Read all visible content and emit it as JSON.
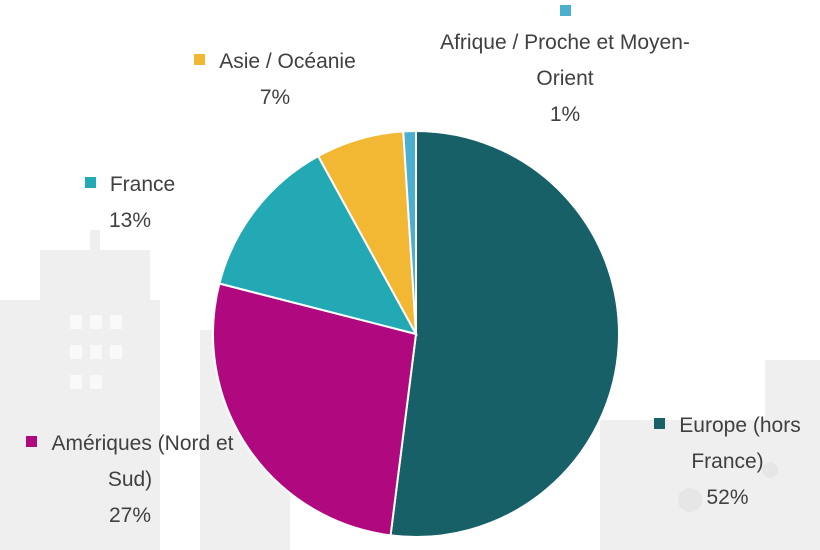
{
  "chart_data": {
    "type": "pie",
    "categories": [
      "Europe (hors France)",
      "Amériques (Nord et Sud)",
      "France",
      "Asie / Océanie",
      "Afrique / Proche et Moyen-Orient"
    ],
    "values": [
      52,
      27,
      13,
      7,
      1
    ],
    "value_labels": [
      "52%",
      "27%",
      "13%",
      "7%",
      "1%"
    ],
    "colors": [
      "#176068",
      "#b0097f",
      "#22a9b4",
      "#f2b733",
      "#4bafd0"
    ]
  }
}
